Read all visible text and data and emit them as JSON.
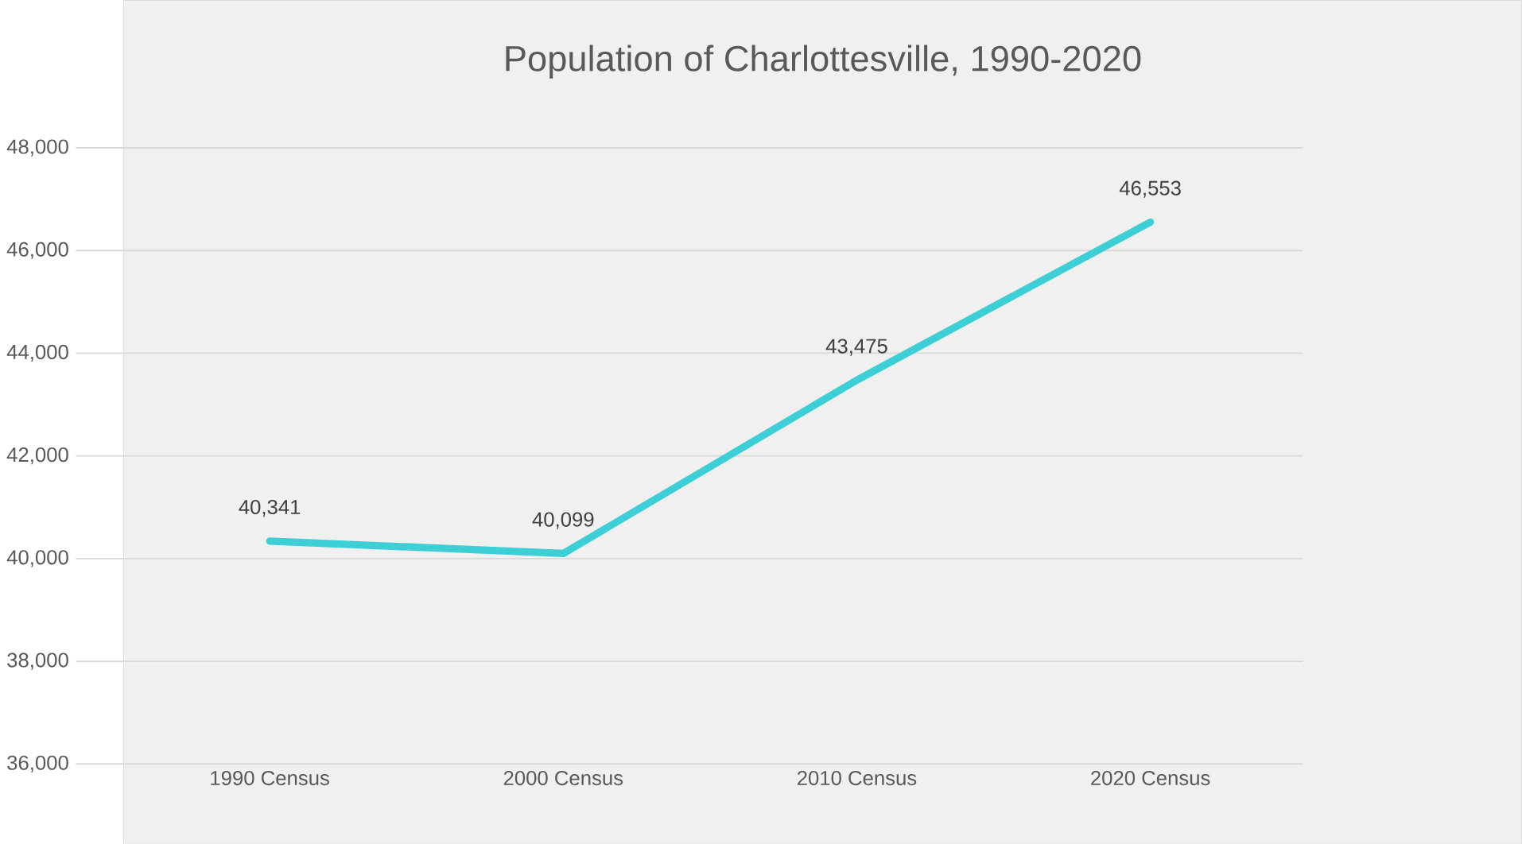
{
  "chart_data": {
    "type": "line",
    "title": "Population of Charlottesville, 1990-2020",
    "categories": [
      "1990 Census",
      "2000 Census",
      "2010 Census",
      "2020 Census"
    ],
    "values": [
      40341,
      40099,
      43475,
      46553
    ],
    "value_labels": [
      "40,341",
      "40,099",
      "43,475",
      "46,553"
    ],
    "color": "#3ecfd6",
    "ylim": [
      36000,
      48000
    ],
    "yticks": [
      {
        "value": 36000,
        "label": "36,000"
      },
      {
        "value": 38000,
        "label": "38,000"
      },
      {
        "value": 40000,
        "label": "40,000"
      },
      {
        "value": 42000,
        "label": "42,000"
      },
      {
        "value": 44000,
        "label": "44,000"
      },
      {
        "value": 46000,
        "label": "46,000"
      },
      {
        "value": 48000,
        "label": "48,000"
      }
    ],
    "grid": "y"
  }
}
